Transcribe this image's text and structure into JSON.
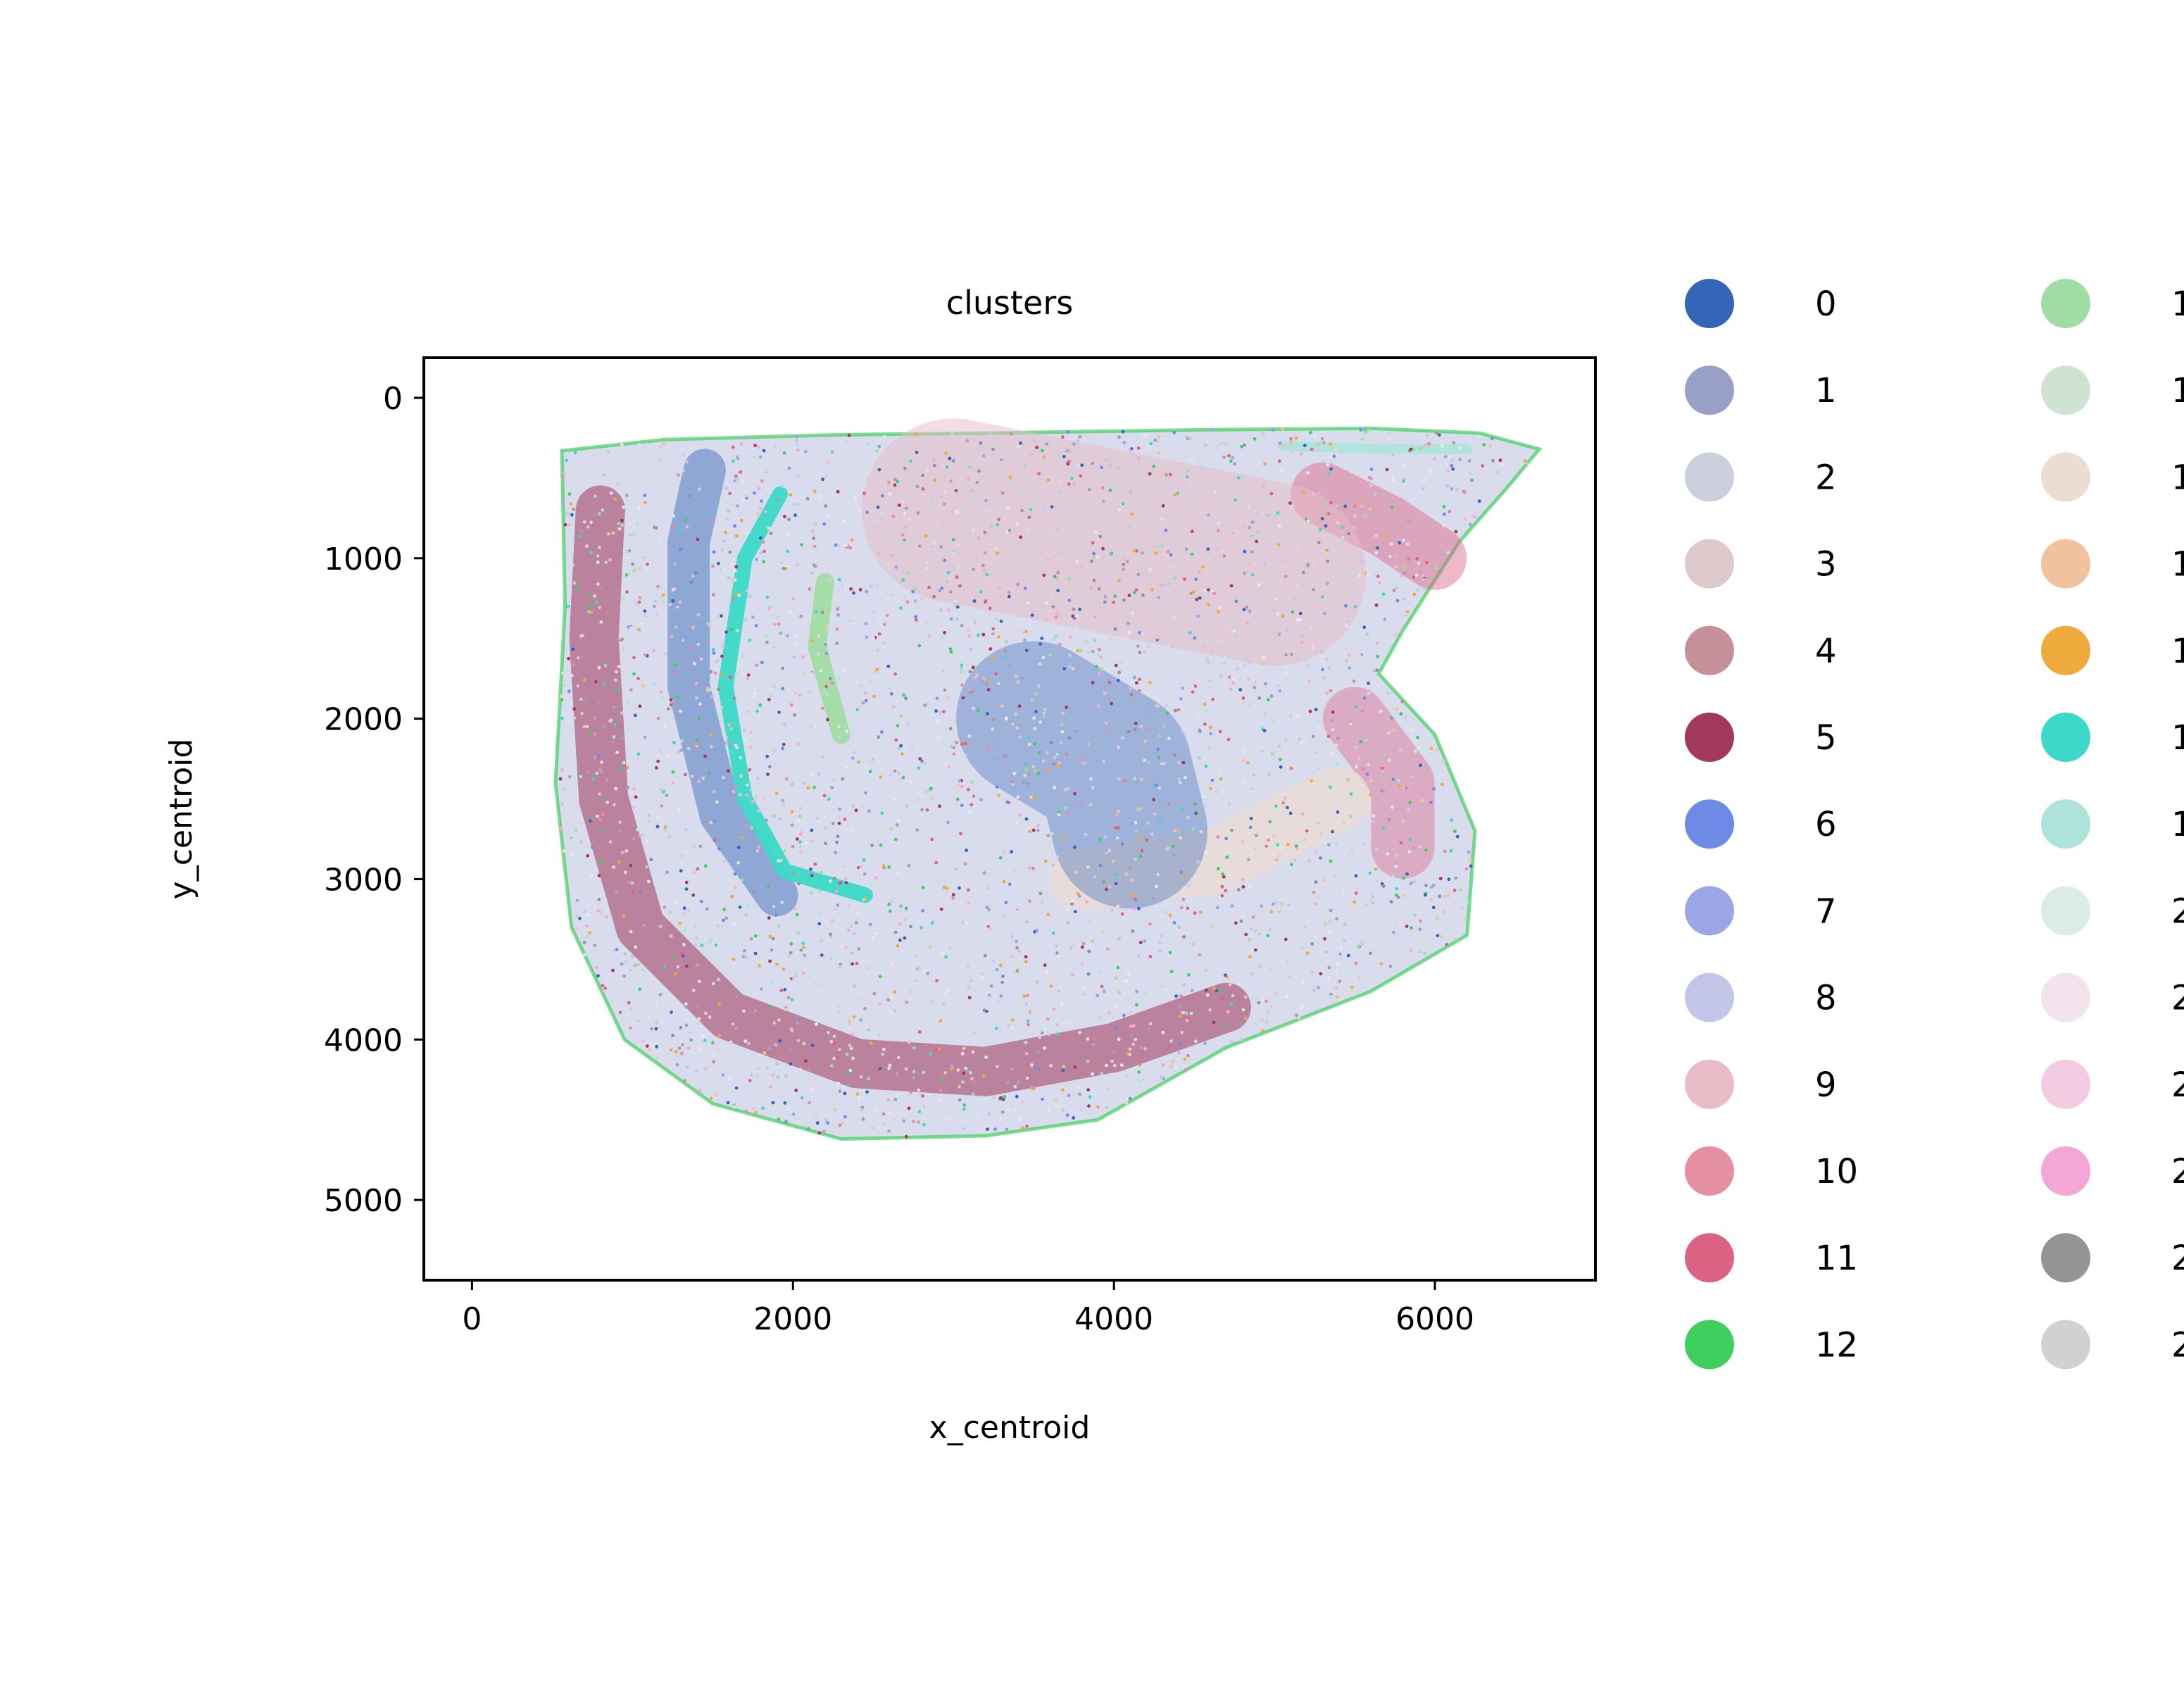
{
  "chart_data": {
    "type": "scatter",
    "title": "clusters",
    "xlabel": "x_centroid",
    "ylabel": "y_centroid",
    "xlim": [
      -300,
      7000
    ],
    "ylim": [
      5500,
      -250
    ],
    "y_inverted": true,
    "xticks": [
      0,
      2000,
      4000,
      6000
    ],
    "yticks": [
      0,
      1000,
      2000,
      3000,
      4000,
      5000
    ],
    "xtick_labels": [
      "0",
      "2000",
      "4000",
      "6000"
    ],
    "ytick_labels": [
      "0",
      "1000",
      "2000",
      "3000",
      "4000",
      "5000"
    ],
    "grid": false,
    "legend_position": "right, outside plot",
    "legend": [
      {
        "label": "0",
        "color": "#3465b8"
      },
      {
        "label": "1",
        "color": "#98a0c8"
      },
      {
        "label": "2",
        "color": "#cbcfdc"
      },
      {
        "label": "3",
        "color": "#ddc8cb"
      },
      {
        "label": "4",
        "color": "#c6909b"
      },
      {
        "label": "5",
        "color": "#a3385f"
      },
      {
        "label": "6",
        "color": "#6f8ae6"
      },
      {
        "label": "7",
        "color": "#9aa6e6"
      },
      {
        "label": "8",
        "color": "#c3c6e8"
      },
      {
        "label": "9",
        "color": "#e8bcc6"
      },
      {
        "label": "10",
        "color": "#e48fa2"
      },
      {
        "label": "11",
        "color": "#dc6284"
      },
      {
        "label": "12",
        "color": "#3fcf5e"
      },
      {
        "label": "1",
        "color": "#a1dca4"
      },
      {
        "label": "1",
        "color": "#cfe3d2"
      },
      {
        "label": "1",
        "color": "#eddcd2"
      },
      {
        "label": "1",
        "color": "#f1c29c"
      },
      {
        "label": "1",
        "color": "#efaa3c"
      },
      {
        "label": "1",
        "color": "#3cd9c8"
      },
      {
        "label": "1",
        "color": "#ade3db"
      },
      {
        "label": "2",
        "color": "#dbece8"
      },
      {
        "label": "2",
        "color": "#f3e3ec"
      },
      {
        "label": "2",
        "color": "#f4cce2"
      },
      {
        "label": "2",
        "color": "#f4a7d7"
      },
      {
        "label": "2",
        "color": "#949494"
      },
      {
        "label": "2",
        "color": "#d1d1d1"
      }
    ],
    "tissue_outline": [
      [
        560,
        330
      ],
      [
        1200,
        260
      ],
      [
        2300,
        230
      ],
      [
        3200,
        220
      ],
      [
        4500,
        200
      ],
      [
        5600,
        190
      ],
      [
        6280,
        220
      ],
      [
        6650,
        320
      ],
      [
        6450,
        560
      ],
      [
        6150,
        900
      ],
      [
        5800,
        1450
      ],
      [
        5650,
        1720
      ],
      [
        6000,
        2100
      ],
      [
        6250,
        2700
      ],
      [
        6200,
        3350
      ],
      [
        5600,
        3700
      ],
      [
        4700,
        4050
      ],
      [
        3900,
        4500
      ],
      [
        3200,
        4600
      ],
      [
        2300,
        4620
      ],
      [
        1500,
        4400
      ],
      [
        950,
        4000
      ],
      [
        620,
        3300
      ],
      [
        520,
        2400
      ],
      [
        580,
        1300
      ],
      [
        560,
        330
      ]
    ]
  }
}
